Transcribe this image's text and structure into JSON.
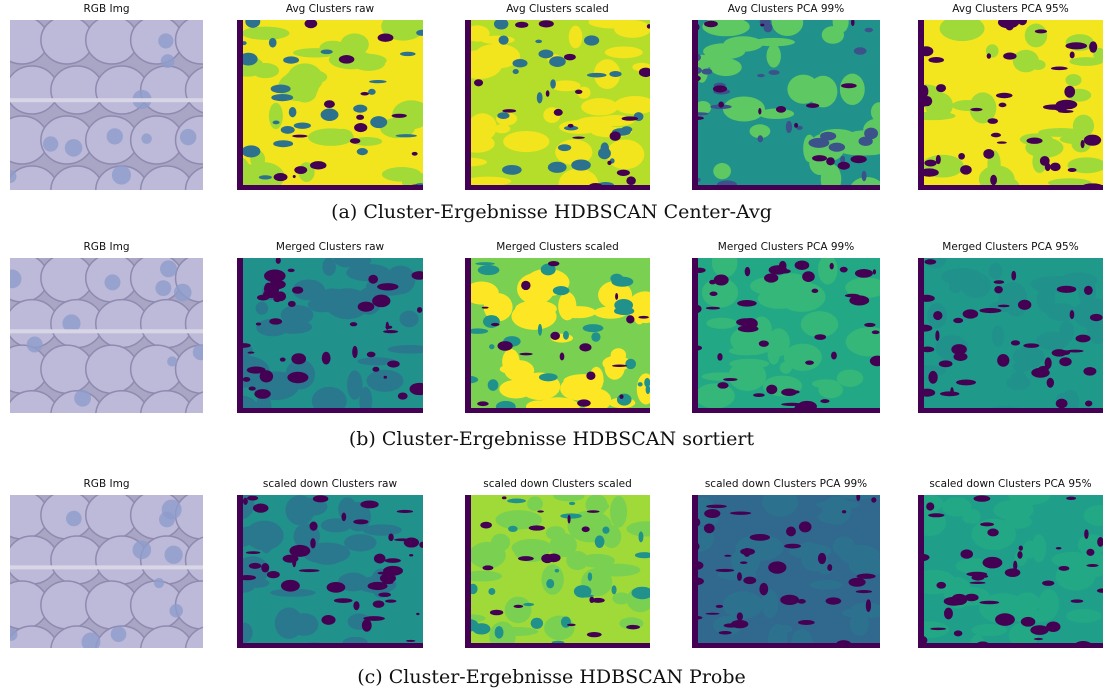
{
  "figure": {
    "rows": [
      {
        "panels": [
          {
            "title": "RGB Img"
          },
          {
            "title": "Avg Clusters raw"
          },
          {
            "title": "Avg Clusters scaled"
          },
          {
            "title": "Avg Clusters PCA 99%"
          },
          {
            "title": "Avg Clusters PCA 95%"
          }
        ],
        "caption": "(a) Cluster-Ergebnisse HDBSCAN Center-Avg"
      },
      {
        "panels": [
          {
            "title": "RGB Img"
          },
          {
            "title": "Merged Clusters raw"
          },
          {
            "title": "Merged Clusters scaled"
          },
          {
            "title": "Merged Clusters PCA 99%"
          },
          {
            "title": "Merged Clusters PCA 95%"
          }
        ],
        "caption": "(b) Cluster-Ergebnisse HDBSCAN sortiert"
      },
      {
        "panels": [
          {
            "title": "RGB Img"
          },
          {
            "title": "scaled down Clusters raw"
          },
          {
            "title": "scaled down Clusters scaled"
          },
          {
            "title": "scaled down Clusters PCA 99%"
          },
          {
            "title": "scaled down Clusters PCA 95%"
          }
        ],
        "caption": "(c) Cluster-Ergebnisse HDBSCAN Probe"
      }
    ]
  }
}
